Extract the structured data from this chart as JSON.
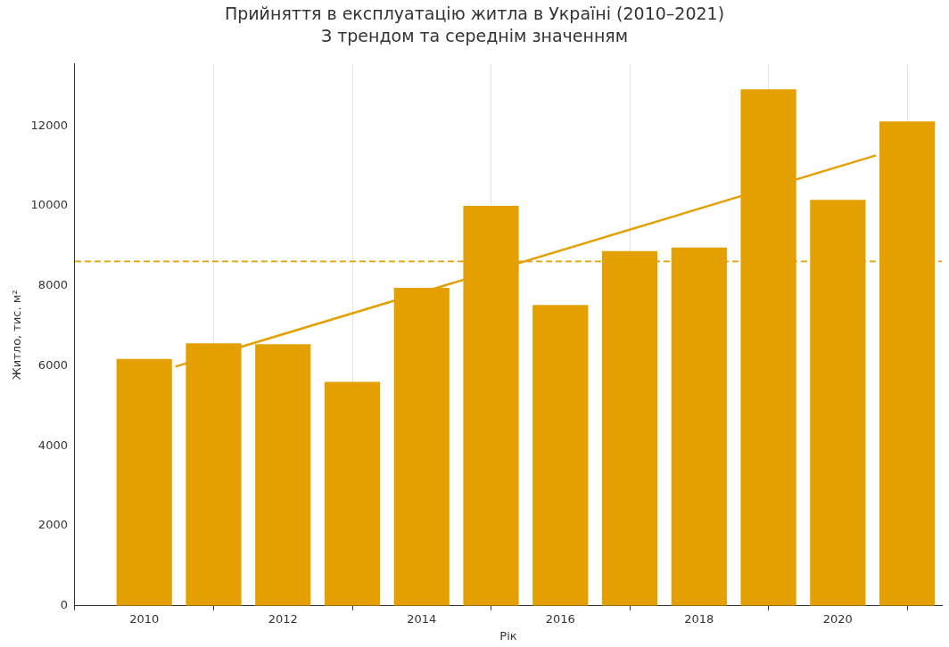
{
  "chart_data": {
    "type": "bar",
    "title": "Прийняття в експлуатацію житла в Україні (2010–2021)",
    "subtitle": "З трендом та середнім значенням",
    "xlabel": "Рік",
    "ylabel": "Житло, тис. м²",
    "x": [
      2010,
      2011,
      2012,
      2013,
      2014,
      2015,
      2016,
      2017,
      2018,
      2019,
      2020,
      2021
    ],
    "series": [
      {
        "color": "#e3a000",
        "values": [
          6170,
          6560,
          6540,
          5600,
          7950,
          10000,
          7520,
          8870,
          8960,
          12910,
          10150,
          12110
        ]
      },
      {
        "type": "line",
        "color": "#e3a000",
        "x": [
          2010.45,
          2020.55
        ],
        "values": [
          5980,
          11260
        ]
      }
    ],
    "ref_lines": [
      {
        "axis": "y",
        "value": 8610,
        "color": "#e3a000",
        "line_style": "dashed"
      }
    ],
    "xlim": [
      2009,
      2021.5
    ],
    "xticks": [
      2010,
      2012,
      2014,
      2016,
      2018,
      2020
    ],
    "ylim": [
      0,
      13550
    ],
    "yticks": [
      0,
      2000,
      4000,
      6000,
      8000,
      10000,
      12000
    ],
    "grid": "x",
    "legend": false
  }
}
